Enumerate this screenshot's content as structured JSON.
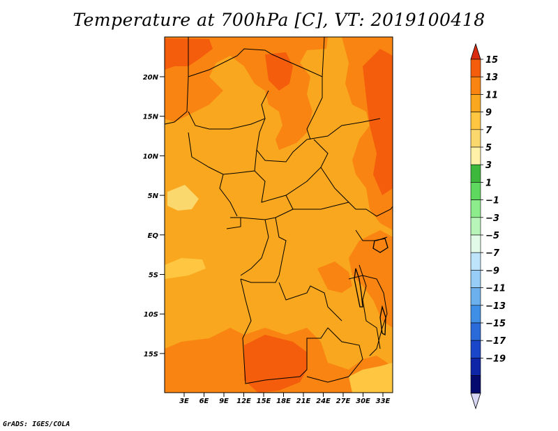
{
  "title": "Temperature at 700hPa [C], VT: 2019100418",
  "credit": "GrADS: IGES/COLA",
  "map": {
    "lat_labels": [
      "20N",
      "15N",
      "10N",
      "5N",
      "EQ",
      "5S",
      "10S",
      "15S"
    ],
    "lon_labels": [
      "3E",
      "6E",
      "9E",
      "12E",
      "15E",
      "18E",
      "21E",
      "24E",
      "27E",
      "30E",
      "33E"
    ],
    "base_color": "#f8a71e",
    "fill_colors": {
      "c7_9": "#ffc741",
      "c9_11": "#f8a71e",
      "c11_13": "#f98412",
      "c13_15": "#f45d0c",
      "c5_7": "#fbd86e"
    }
  },
  "colorbar": {
    "labels": [
      "15",
      "13",
      "11",
      "9",
      "7",
      "5",
      "3",
      "1",
      "−1",
      "−3",
      "−5",
      "−7",
      "−9",
      "−11",
      "−13",
      "−15",
      "−17",
      "−19"
    ],
    "colors": [
      "#d82b10",
      "#f45d0c",
      "#f98412",
      "#f8a71e",
      "#ffc741",
      "#fbd86e",
      "#fff2a8",
      "#3db83d",
      "#5fd85f",
      "#8ded8d",
      "#b8f5b8",
      "#e2fbe8",
      "#bde4fb",
      "#97cdf6",
      "#6cb0ee",
      "#3f8fe6",
      "#2a6bd9",
      "#1a47c9",
      "#0e25a8",
      "#050a6e",
      "#d8d6f5"
    ]
  }
}
